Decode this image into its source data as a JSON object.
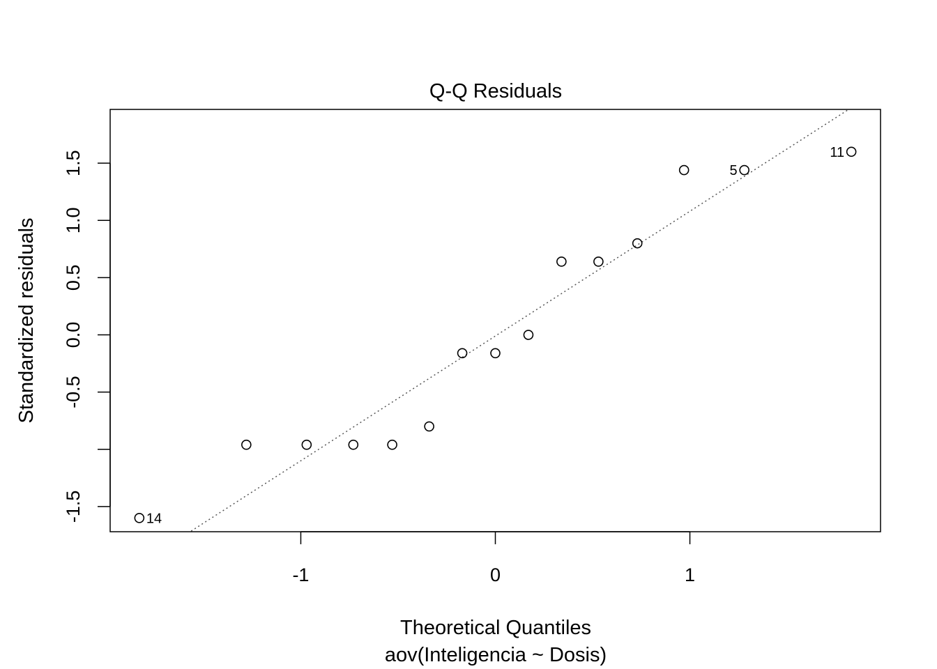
{
  "chart_data": {
    "type": "scatter",
    "title": "Q-Q Residuals",
    "xlabel": "Theoretical Quantiles",
    "sublabel": "aov(Inteligencia ~ Dosis)",
    "ylabel": "Standardized residuals",
    "xlim": [
      -1.98,
      1.98
    ],
    "ylim": [
      -1.72,
      1.97
    ],
    "x_ticks": [
      -1,
      0,
      1
    ],
    "x_tick_labels": [
      "-1",
      "0",
      "1"
    ],
    "y_ticks": [
      -1.5,
      -1.0,
      -0.5,
      0.0,
      0.5,
      1.0,
      1.5
    ],
    "y_tick_labels": [
      "-1.5",
      "",
      "-0.5",
      "0.0",
      "0.5",
      "1.0",
      "1.5"
    ],
    "grid": false,
    "reference_line": {
      "style": "dotted",
      "color": "#555555",
      "slope": 1.09,
      "intercept": -0.01
    },
    "points": [
      {
        "x": -1.83,
        "y": -1.6,
        "label": "14"
      },
      {
        "x": -1.28,
        "y": -0.96,
        "label": ""
      },
      {
        "x": -0.97,
        "y": -0.96,
        "label": ""
      },
      {
        "x": -0.73,
        "y": -0.96,
        "label": ""
      },
      {
        "x": -0.53,
        "y": -0.96,
        "label": ""
      },
      {
        "x": -0.34,
        "y": -0.8,
        "label": ""
      },
      {
        "x": -0.17,
        "y": -0.16,
        "label": ""
      },
      {
        "x": 0.0,
        "y": -0.16,
        "label": ""
      },
      {
        "x": 0.17,
        "y": 0.0,
        "label": ""
      },
      {
        "x": 0.34,
        "y": 0.64,
        "label": ""
      },
      {
        "x": 0.53,
        "y": 0.64,
        "label": ""
      },
      {
        "x": 0.73,
        "y": 0.8,
        "label": ""
      },
      {
        "x": 0.97,
        "y": 1.44,
        "label": ""
      },
      {
        "x": 1.28,
        "y": 1.44,
        "label": "5"
      },
      {
        "x": 1.83,
        "y": 1.6,
        "label": "11"
      }
    ]
  }
}
